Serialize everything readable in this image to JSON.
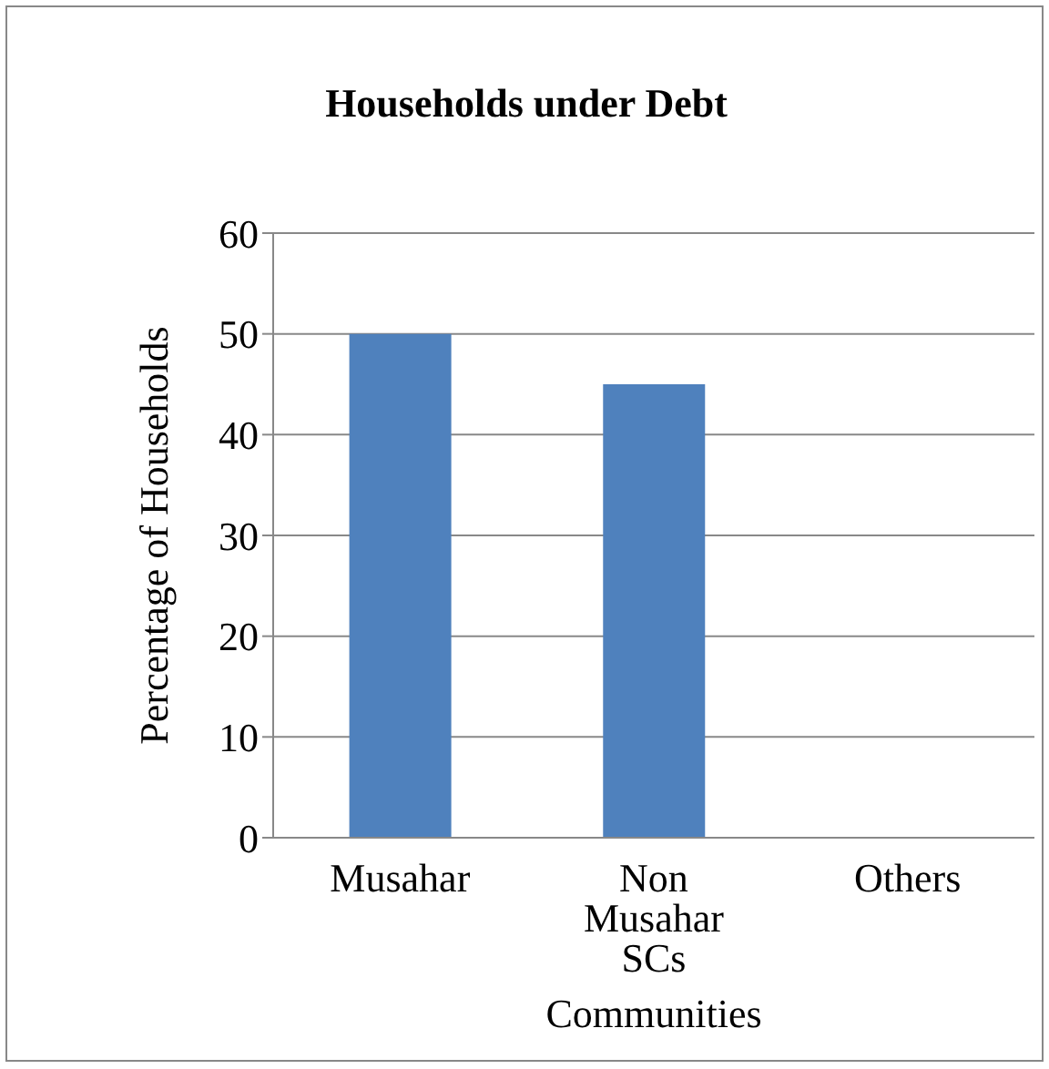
{
  "chart_data": {
    "type": "bar",
    "title": "Households under Debt",
    "xlabel": "Communities",
    "ylabel": "Percentage of Households",
    "categories": [
      "Musahar",
      "Non Musahar SCs",
      "Others"
    ],
    "series": [
      {
        "color": "#4f81bd",
        "values": [
          50,
          45,
          0
        ]
      }
    ],
    "ylim": [
      0,
      60
    ],
    "yticks": [
      0,
      10,
      20,
      30,
      40,
      50,
      60
    ],
    "grid": "y",
    "legend": false
  }
}
